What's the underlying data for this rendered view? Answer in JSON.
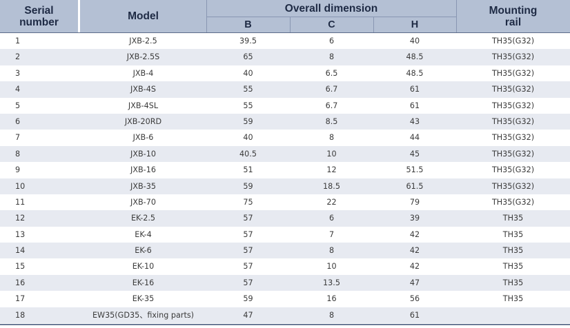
{
  "header": {
    "serial": "Serial\nnumber",
    "model": "Model",
    "overall": "Overall dimension",
    "b": "B",
    "c": "C",
    "h": "H",
    "rail": "Mounting\nrail"
  },
  "rows": [
    {
      "serial": "1",
      "model": "JXB-2.5",
      "b": "39.5",
      "c": "6",
      "h": "40",
      "rail": "TH35(G32)"
    },
    {
      "serial": "2",
      "model": "JXB-2.5S",
      "b": "65",
      "c": "8",
      "h": "48.5",
      "rail": "TH35(G32)"
    },
    {
      "serial": "3",
      "model": "JXB-4",
      "b": "40",
      "c": "6.5",
      "h": "48.5",
      "rail": "TH35(G32)"
    },
    {
      "serial": "4",
      "model": "JXB-4S",
      "b": "55",
      "c": "6.7",
      "h": "61",
      "rail": "TH35(G32)"
    },
    {
      "serial": "5",
      "model": "JXB-4SL",
      "b": "55",
      "c": "6.7",
      "h": "61",
      "rail": "TH35(G32)"
    },
    {
      "serial": "6",
      "model": "JXB-20RD",
      "b": "59",
      "c": "8.5",
      "h": "43",
      "rail": "TH35(G32)"
    },
    {
      "serial": "7",
      "model": "JXB-6",
      "b": "40",
      "c": "8",
      "h": "44",
      "rail": "TH35(G32)"
    },
    {
      "serial": "8",
      "model": "JXB-10",
      "b": "40.5",
      "c": "10",
      "h": "45",
      "rail": "TH35(G32)"
    },
    {
      "serial": "9",
      "model": "JXB-16",
      "b": "51",
      "c": "12",
      "h": "51.5",
      "rail": "TH35(G32)"
    },
    {
      "serial": "10",
      "model": "JXB-35",
      "b": "59",
      "c": "18.5",
      "h": "61.5",
      "rail": "TH35(G32)"
    },
    {
      "serial": "11",
      "model": "JXB-70",
      "b": "75",
      "c": "22",
      "h": "79",
      "rail": "TH35(G32)"
    },
    {
      "serial": "12",
      "model": "EK-2.5",
      "b": "57",
      "c": "6",
      "h": "39",
      "rail": "TH35"
    },
    {
      "serial": "13",
      "model": "EK-4",
      "b": "57",
      "c": "7",
      "h": "42",
      "rail": "TH35"
    },
    {
      "serial": "14",
      "model": "EK-6",
      "b": "57",
      "c": "8",
      "h": "42",
      "rail": "TH35"
    },
    {
      "serial": "15",
      "model": "EK-10",
      "b": "57",
      "c": "10",
      "h": "42",
      "rail": "TH35"
    },
    {
      "serial": "16",
      "model": "EK-16",
      "b": "57",
      "c": "13.5",
      "h": "47",
      "rail": "TH35"
    },
    {
      "serial": "17",
      "model": "EK-35",
      "b": "59",
      "c": "16",
      "h": "56",
      "rail": "TH35"
    },
    {
      "serial": "18",
      "model": "EW35(GD35、fixing parts)",
      "b": "47",
      "c": "8",
      "h": "61",
      "rail": ""
    }
  ]
}
